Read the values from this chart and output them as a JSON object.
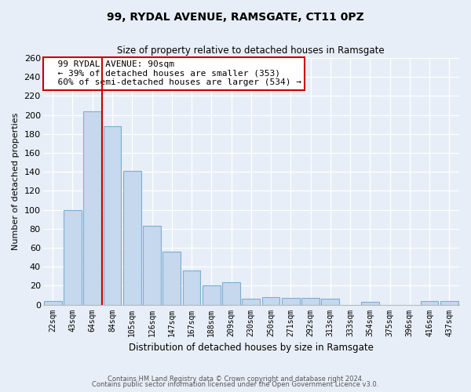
{
  "title": "99, RYDAL AVENUE, RAMSGATE, CT11 0PZ",
  "subtitle": "Size of property relative to detached houses in Ramsgate",
  "xlabel": "Distribution of detached houses by size in Ramsgate",
  "ylabel": "Number of detached properties",
  "bar_labels": [
    "22sqm",
    "43sqm",
    "64sqm",
    "84sqm",
    "105sqm",
    "126sqm",
    "147sqm",
    "167sqm",
    "188sqm",
    "209sqm",
    "230sqm",
    "250sqm",
    "271sqm",
    "292sqm",
    "313sqm",
    "333sqm",
    "354sqm",
    "375sqm",
    "396sqm",
    "416sqm",
    "437sqm"
  ],
  "bar_values": [
    4,
    100,
    204,
    188,
    141,
    83,
    56,
    36,
    20,
    24,
    6,
    8,
    7,
    7,
    6,
    0,
    3,
    0,
    0,
    4,
    4
  ],
  "bar_color": "#c5d8ed",
  "bar_edge_color": "#7aaed4",
  "ylim": [
    0,
    260
  ],
  "yticks": [
    0,
    20,
    40,
    60,
    80,
    100,
    120,
    140,
    160,
    180,
    200,
    220,
    240,
    260
  ],
  "property_line_color": "#cc0000",
  "annotation_title": "99 RYDAL AVENUE: 90sqm",
  "annotation_line1": "← 39% of detached houses are smaller (353)",
  "annotation_line2": "60% of semi-detached houses are larger (534) →",
  "annotation_box_color": "#ffffff",
  "annotation_box_edge": "#cc0000",
  "footer_line1": "Contains HM Land Registry data © Crown copyright and database right 2024.",
  "footer_line2": "Contains public sector information licensed under the Open Government Licence v3.0.",
  "bg_color": "#e8eef7",
  "plot_bg_color": "#e8eef7",
  "grid_color": "#ffffff"
}
